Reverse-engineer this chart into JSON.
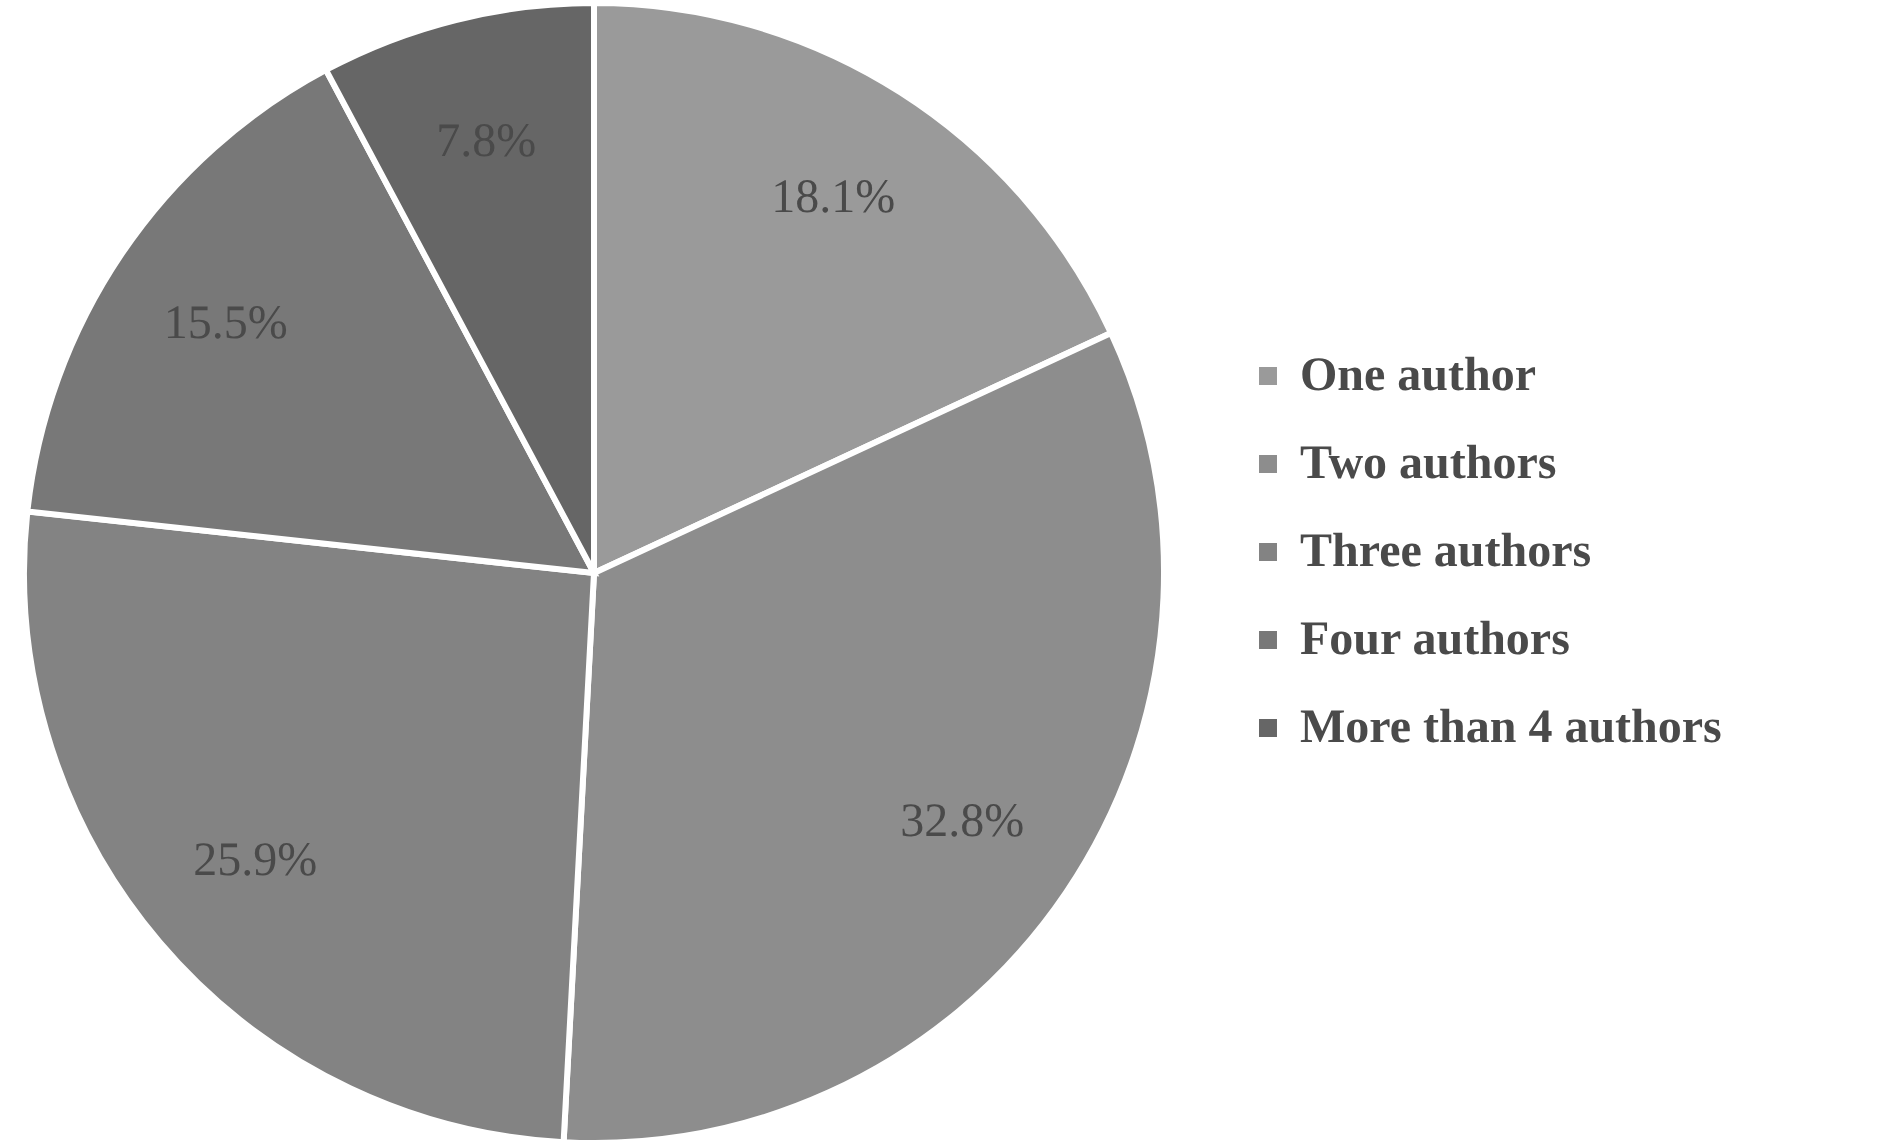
{
  "chart_data": {
    "type": "pie",
    "categories": [
      "One author",
      "Two authors",
      "Three authors",
      "Four authors",
      "More than 4 authors"
    ],
    "values": [
      18.1,
      32.8,
      25.9,
      15.5,
      7.8
    ],
    "colors": [
      "#9a9a9a",
      "#8d8d8d",
      "#838383",
      "#787878",
      "#666666"
    ],
    "value_labels": [
      "18.1%",
      "32.8%",
      "25.9%",
      "15.5%",
      "7.8%"
    ],
    "legend": "right"
  }
}
